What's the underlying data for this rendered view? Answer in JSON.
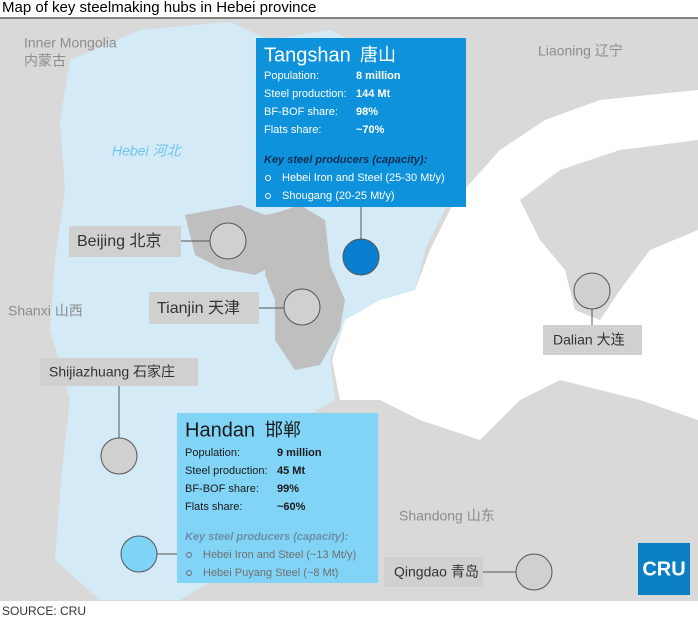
{
  "title": "Map of key steelmaking hubs in Hebei province",
  "regions": [
    "Inner Mongolia",
    "内蒙古",
    "Liaoning 辽宁",
    "Hebei 河北",
    "Shanxi 山西",
    "Shandong 山东"
  ],
  "cities": [
    "Beijing 北京",
    "Tianjin 天津",
    "Shijiazhuang 石家庄",
    "Dalian 大连",
    "Qingdao 青岛"
  ],
  "hubs": [
    {
      "name": "Tangshan",
      "name_cn": "唐山",
      "stats": [
        {
          "label": "Population:",
          "value": "8 million"
        },
        {
          "label": "Steel production:",
          "value": "144 Mt"
        },
        {
          "label": "BF-BOF share:",
          "value": "98%"
        },
        {
          "label": "Flats share:",
          "value": "~70%"
        }
      ],
      "producers_title": "Key steel producers (capacity):",
      "producers": [
        "Hebei Iron and Steel (25-30 Mt/y)",
        "Shougang (20-25 Mt/y)"
      ]
    },
    {
      "name": "Handan",
      "name_cn": "邯郸",
      "stats": [
        {
          "label": "Population:",
          "value": "9 million"
        },
        {
          "label": "Steel production:",
          "value": "45 Mt"
        },
        {
          "label": "BF-BOF share:",
          "value": "99%"
        },
        {
          "label": "Flats share:",
          "value": "~60%"
        }
      ],
      "producers_title": "Key steel producers (capacity):",
      "producers": [
        "Hebei Iron and Steel (~13 Mt/y)",
        "Hebei Puyang Steel (~8 Mt)"
      ]
    }
  ],
  "logo": "CRU",
  "source": "SOURCE: CRU"
}
